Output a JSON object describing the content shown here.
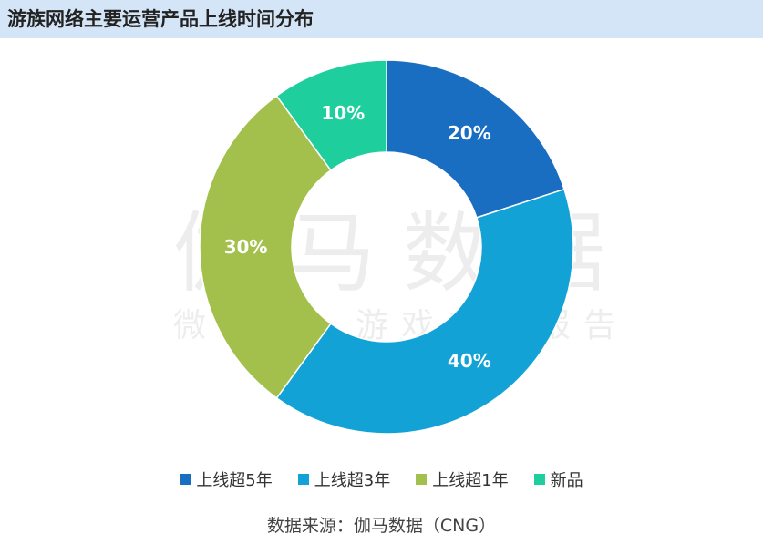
{
  "title": "游族网络主要运营产品上线时间分布",
  "watermark": {
    "main": "伽马数据",
    "sub": "微信号：游戏产业报告"
  },
  "source": "数据来源：伽马数据（CNG）",
  "chart_data": {
    "type": "pie",
    "donut": true,
    "categories": [
      "上线超5年",
      "上线超3年",
      "上线超1年",
      "新品"
    ],
    "values": [
      20,
      40,
      30,
      10
    ],
    "labels": [
      "20%",
      "40%",
      "30%",
      "10%"
    ],
    "colors": [
      "#1a6ec2",
      "#12a2d6",
      "#a2c04b",
      "#1ecf9d"
    ],
    "legend_position": "bottom"
  }
}
